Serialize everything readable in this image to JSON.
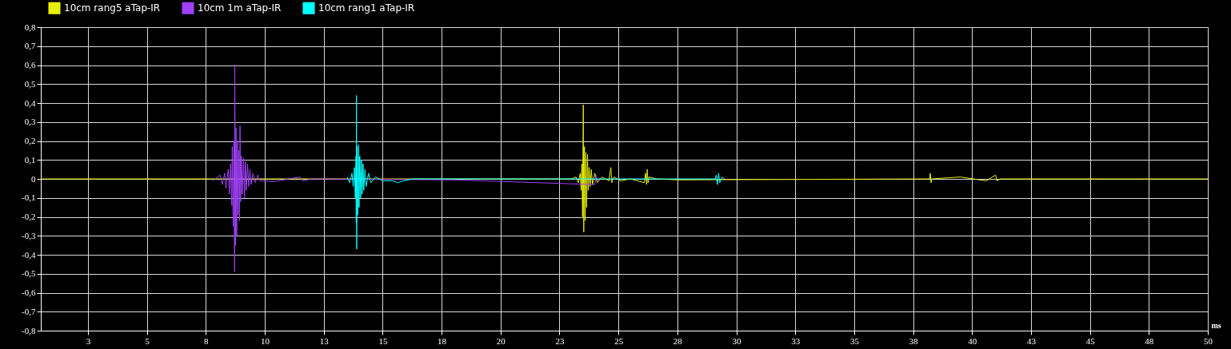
{
  "chart_data": {
    "type": "line",
    "xlabel": "ms",
    "legend": "top left",
    "grid": true,
    "marker": "none",
    "line_style": "solid",
    "xlim": [
      0.5,
      50
    ],
    "ylim": [
      -0.8,
      0.8
    ],
    "xticks": [
      {
        "value": 2.5,
        "label": "3"
      },
      5,
      {
        "value": 7.5,
        "label": "8"
      },
      10,
      {
        "value": 12.5,
        "label": "13"
      },
      15,
      {
        "value": 17.5,
        "label": "18"
      },
      20,
      {
        "value": 22.5,
        "label": "23"
      },
      25,
      {
        "value": 27.5,
        "label": "28"
      },
      30,
      {
        "value": 32.5,
        "label": "33"
      },
      35,
      {
        "value": 37.5,
        "label": "38"
      },
      40,
      {
        "value": 42.5,
        "label": "43"
      },
      45,
      {
        "value": 47.5,
        "label": "48"
      },
      50
    ],
    "yticks": [
      {
        "value": 0.8,
        "label": "0,8"
      },
      {
        "value": 0.7,
        "label": "0,7"
      },
      {
        "value": 0.6,
        "label": "0,6"
      },
      {
        "value": 0.5,
        "label": "0,5"
      },
      {
        "value": 0.4,
        "label": "0,4"
      },
      {
        "value": 0.3,
        "label": "0,3"
      },
      {
        "value": 0.2,
        "label": "0,2"
      },
      {
        "value": 0.1,
        "label": "0,1"
      },
      {
        "value": 0,
        "label": "0"
      },
      {
        "value": -0.1,
        "label": "-0,1"
      },
      {
        "value": -0.2,
        "label": "-0,2"
      },
      {
        "value": -0.3,
        "label": "-0,3"
      },
      {
        "value": -0.4,
        "label": "-0,4"
      },
      {
        "value": -0.5,
        "label": "-0,5"
      },
      {
        "value": -0.6,
        "label": "-0,6"
      },
      {
        "value": -0.7,
        "label": "-0,7"
      },
      {
        "value": -0.8,
        "label": "-0,8"
      }
    ],
    "series": [
      {
        "name": "10cm rang5 aTap-IR",
        "color": "#e8f000",
        "x": [
          0.5,
          23.0,
          23.2,
          23.3,
          23.38,
          23.42,
          23.45,
          23.48,
          23.51,
          23.53,
          23.56,
          23.59,
          23.62,
          23.65,
          23.69,
          23.72,
          23.76,
          23.8,
          23.85,
          23.9,
          24.0,
          24.1,
          24.3,
          24.6,
          24.65,
          24.68,
          24.72,
          24.8,
          25.1,
          25.5,
          26.1,
          26.15,
          26.2,
          26.22,
          26.26,
          26.3,
          26.6,
          27.5,
          38.2,
          38.23,
          38.26,
          38.3,
          39.5,
          40.6,
          41.0,
          41.05,
          41.2,
          50
        ],
        "values": [
          0,
          0,
          0.01,
          -0.02,
          0.03,
          -0.06,
          0.08,
          -0.2,
          0.39,
          -0.28,
          0.17,
          -0.22,
          0.14,
          -0.15,
          0.13,
          -0.06,
          0.06,
          -0.04,
          0.05,
          -0.03,
          0.03,
          -0.02,
          0.01,
          -0.01,
          0.04,
          0.06,
          -0.02,
          0.01,
          -0.01,
          0,
          -0.02,
          0.03,
          -0.03,
          0.05,
          -0.02,
          0.01,
          0,
          -0.005,
          0,
          0.03,
          -0.02,
          0,
          0.01,
          -0.01,
          0.02,
          -0.01,
          0,
          0
        ]
      },
      {
        "name": "10cm 1m aTap-IR",
        "color": "#a040f8",
        "x": [
          7.8,
          8.1,
          8.2,
          8.3,
          8.35,
          8.45,
          8.5,
          8.55,
          8.6,
          8.62,
          8.66,
          8.69,
          8.72,
          8.73,
          8.76,
          8.78,
          8.81,
          8.84,
          8.87,
          8.9,
          8.93,
          8.95,
          8.98,
          9.01,
          9.05,
          9.1,
          9.14,
          9.18,
          9.22,
          9.27,
          9.32,
          9.37,
          9.42,
          9.5,
          9.6,
          9.7,
          9.8,
          10.0,
          10.3,
          10.6,
          11.0,
          11.5,
          11.6,
          12.0,
          18.0,
          24.0,
          24.05,
          24.1,
          24.2
        ],
        "values": [
          -0.01,
          0.02,
          -0.03,
          0.03,
          -0.05,
          0.05,
          -0.08,
          0.08,
          -0.14,
          0.17,
          -0.25,
          0.2,
          -0.49,
          0.6,
          -0.35,
          0.27,
          -0.3,
          0.2,
          -0.19,
          0.15,
          -0.22,
          0.28,
          -0.12,
          0.12,
          -0.08,
          0.11,
          -0.1,
          0.09,
          -0.06,
          0.08,
          -0.04,
          0.05,
          -0.03,
          0.03,
          -0.02,
          0.02,
          -0.01,
          -0.01,
          -0.015,
          -0.01,
          0,
          0.01,
          -0.01,
          0,
          -0.005,
          -0.03,
          0.02,
          -0.01,
          0
        ]
      },
      {
        "name": "10cm rang1 aTap-IR",
        "color": "#00ffff",
        "x": [
          13.5,
          13.6,
          13.7,
          13.75,
          13.8,
          13.84,
          13.87,
          13.88,
          13.89,
          13.9,
          13.92,
          13.95,
          13.98,
          14.0,
          14.03,
          14.07,
          14.1,
          14.13,
          14.17,
          14.2,
          14.25,
          14.3,
          14.4,
          14.5,
          14.7,
          15.0,
          15.4,
          15.65,
          15.9,
          16.3,
          29.1,
          29.15,
          29.2,
          29.25,
          29.3,
          29.4,
          29.5
        ],
        "values": [
          0.01,
          -0.02,
          0.03,
          -0.04,
          0.06,
          -0.1,
          0.12,
          -0.23,
          0.44,
          -0.37,
          0.17,
          -0.19,
          0.18,
          -0.15,
          0.12,
          -0.1,
          0.1,
          -0.08,
          0.08,
          -0.06,
          0.05,
          -0.04,
          0.03,
          -0.02,
          0.01,
          -0.01,
          -0.01,
          -0.02,
          -0.01,
          0,
          0,
          0.02,
          -0.03,
          0.03,
          -0.02,
          0.01,
          0
        ]
      }
    ]
  }
}
